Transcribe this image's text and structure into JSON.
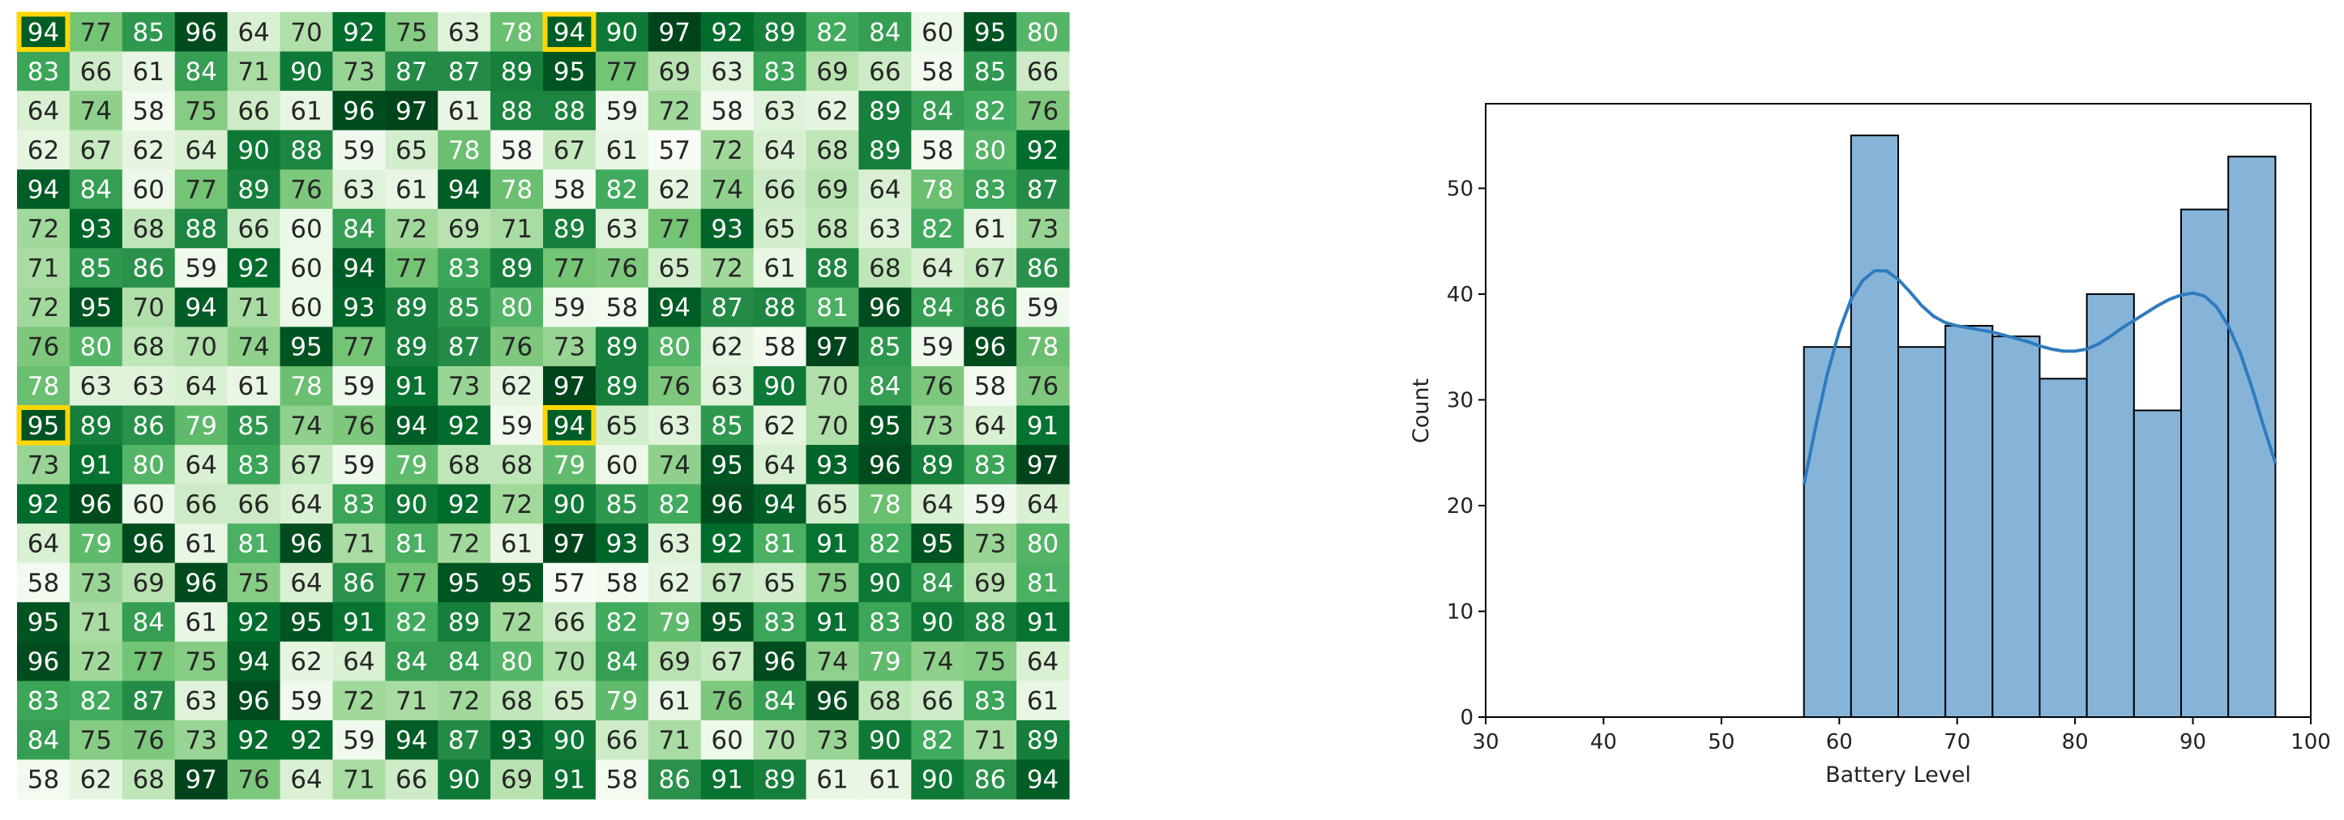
{
  "chart_data": [
    {
      "type": "heatmap",
      "colormap": "Greens",
      "value_range": [
        57,
        97
      ],
      "highlight_color": "#ffd700",
      "highlighted_cells": [
        [
          0,
          0
        ],
        [
          0,
          10
        ],
        [
          10,
          0
        ],
        [
          10,
          10
        ]
      ],
      "values": [
        [
          94,
          77,
          85,
          96,
          64,
          70,
          92,
          75,
          63,
          78,
          94,
          90,
          97,
          92,
          89,
          82,
          84,
          60,
          95,
          80
        ],
        [
          83,
          66,
          61,
          84,
          71,
          90,
          73,
          87,
          87,
          89,
          95,
          77,
          69,
          63,
          83,
          69,
          66,
          58,
          85,
          66
        ],
        [
          64,
          74,
          58,
          75,
          66,
          61,
          96,
          97,
          61,
          88,
          88,
          59,
          72,
          58,
          63,
          62,
          89,
          84,
          82,
          76
        ],
        [
          62,
          67,
          62,
          64,
          90,
          88,
          59,
          65,
          78,
          58,
          67,
          61,
          57,
          72,
          64,
          68,
          89,
          58,
          80,
          92
        ],
        [
          94,
          84,
          60,
          77,
          89,
          76,
          63,
          61,
          94,
          78,
          58,
          82,
          62,
          74,
          66,
          69,
          64,
          78,
          83,
          87
        ],
        [
          72,
          93,
          68,
          88,
          66,
          60,
          84,
          72,
          69,
          71,
          89,
          63,
          77,
          93,
          65,
          68,
          63,
          82,
          61,
          73
        ],
        [
          71,
          85,
          86,
          59,
          92,
          60,
          94,
          77,
          83,
          89,
          77,
          76,
          65,
          72,
          61,
          88,
          68,
          64,
          67,
          86
        ],
        [
          72,
          95,
          70,
          94,
          71,
          60,
          93,
          89,
          85,
          80,
          59,
          58,
          94,
          87,
          88,
          81,
          96,
          84,
          86,
          59
        ],
        [
          76,
          80,
          68,
          70,
          74,
          95,
          77,
          89,
          87,
          76,
          73,
          89,
          80,
          62,
          58,
          97,
          85,
          59,
          96,
          78
        ],
        [
          78,
          63,
          63,
          64,
          61,
          78,
          59,
          91,
          73,
          62,
          97,
          89,
          76,
          63,
          90,
          70,
          84,
          76,
          58,
          76
        ],
        [
          95,
          89,
          86,
          79,
          85,
          74,
          76,
          94,
          92,
          59,
          94,
          65,
          63,
          85,
          62,
          70,
          95,
          73,
          64,
          91
        ],
        [
          73,
          91,
          80,
          64,
          83,
          67,
          59,
          79,
          68,
          68,
          79,
          60,
          74,
          95,
          64,
          93,
          96,
          89,
          83,
          97
        ],
        [
          92,
          96,
          60,
          66,
          66,
          64,
          83,
          90,
          92,
          72,
          90,
          85,
          82,
          96,
          94,
          65,
          78,
          64,
          59,
          64
        ],
        [
          64,
          79,
          96,
          61,
          81,
          96,
          71,
          81,
          72,
          61,
          97,
          93,
          63,
          92,
          81,
          91,
          82,
          95,
          73,
          80
        ],
        [
          58,
          73,
          69,
          96,
          75,
          64,
          86,
          77,
          95,
          95,
          57,
          58,
          62,
          67,
          65,
          75,
          90,
          84,
          69,
          81
        ],
        [
          95,
          71,
          84,
          61,
          92,
          95,
          91,
          82,
          89,
          72,
          66,
          82,
          79,
          95,
          83,
          91,
          83,
          90,
          88,
          91
        ],
        [
          96,
          72,
          77,
          75,
          94,
          62,
          64,
          84,
          84,
          80,
          70,
          84,
          69,
          67,
          96,
          74,
          79,
          74,
          75,
          64
        ],
        [
          83,
          82,
          87,
          63,
          96,
          59,
          72,
          71,
          72,
          68,
          65,
          79,
          61,
          76,
          84,
          96,
          68,
          66,
          83,
          61
        ],
        [
          84,
          75,
          76,
          73,
          92,
          92,
          59,
          94,
          87,
          93,
          90,
          66,
          71,
          60,
          70,
          73,
          90,
          82,
          71,
          89
        ],
        [
          58,
          62,
          68,
          97,
          76,
          64,
          71,
          66,
          90,
          69,
          91,
          58,
          86,
          91,
          89,
          61,
          61,
          90,
          86,
          94
        ]
      ]
    },
    {
      "type": "bar",
      "subtype": "histogram_with_kde",
      "xlabel": "Battery Level",
      "ylabel": "Count",
      "xlim": [
        30,
        100
      ],
      "ylim": [
        0,
        58
      ],
      "xticks": [
        30,
        40,
        50,
        60,
        70,
        80,
        90,
        100
      ],
      "yticks": [
        0,
        10,
        20,
        30,
        40,
        50
      ],
      "bin_edges": [
        57,
        61,
        65,
        69,
        73,
        77,
        81,
        85,
        89,
        93,
        97
      ],
      "counts": [
        35,
        55,
        35,
        37,
        36,
        32,
        40,
        29,
        48,
        53
      ],
      "bar_color": "#86b4d9",
      "kde_color": "#2f7bbf",
      "kde": {
        "x": [
          57,
          58,
          59,
          60,
          61,
          62,
          63,
          64,
          65,
          66,
          67,
          68,
          69,
          70,
          71,
          72,
          73,
          74,
          75,
          76,
          77,
          78,
          79,
          80,
          81,
          82,
          83,
          84,
          85,
          86,
          87,
          88,
          89,
          90,
          91,
          92,
          93,
          94,
          95,
          96,
          97
        ],
        "y": [
          22,
          27.5,
          32.5,
          36.5,
          39.5,
          41.3,
          42.2,
          42.2,
          41.4,
          40.2,
          38.9,
          37.9,
          37.3,
          37.0,
          36.8,
          36.6,
          36.4,
          36.1,
          35.8,
          35.5,
          35.1,
          34.8,
          34.6,
          34.6,
          34.8,
          35.3,
          36.0,
          36.8,
          37.5,
          38.2,
          38.9,
          39.5,
          39.9,
          40.1,
          39.8,
          38.8,
          37.0,
          34.5,
          31.2,
          27.5,
          24
        ]
      }
    }
  ]
}
